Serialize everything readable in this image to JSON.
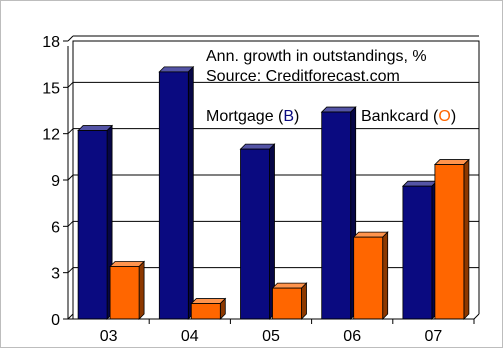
{
  "chart_data": {
    "type": "bar",
    "categories": [
      "03",
      "04",
      "05",
      "06",
      "07"
    ],
    "series": [
      {
        "name": "Mortgage",
        "values": [
          12.2,
          16.0,
          11.0,
          13.4,
          8.6
        ],
        "color": "#0a0a80"
      },
      {
        "name": "Bankcard",
        "values": [
          3.4,
          1.0,
          2.0,
          5.3,
          10.0
        ],
        "color": "#ff6600"
      }
    ],
    "ylim": [
      0,
      18
    ],
    "yticks": [
      "0",
      "3",
      "6",
      "9",
      "12",
      "15",
      "18"
    ],
    "grid": true,
    "bar_style": "3d",
    "title_lines": [
      "Ann. growth in outstandings, %",
      "Source: Creditforecast.com"
    ],
    "legend": {
      "placement": "top-right",
      "mortgage_text": "Mortgage (",
      "mortgage_letter": "B",
      "bankcard_text": "Bankcard (",
      "bankcard_letter": "O",
      "close_paren": ")"
    }
  }
}
